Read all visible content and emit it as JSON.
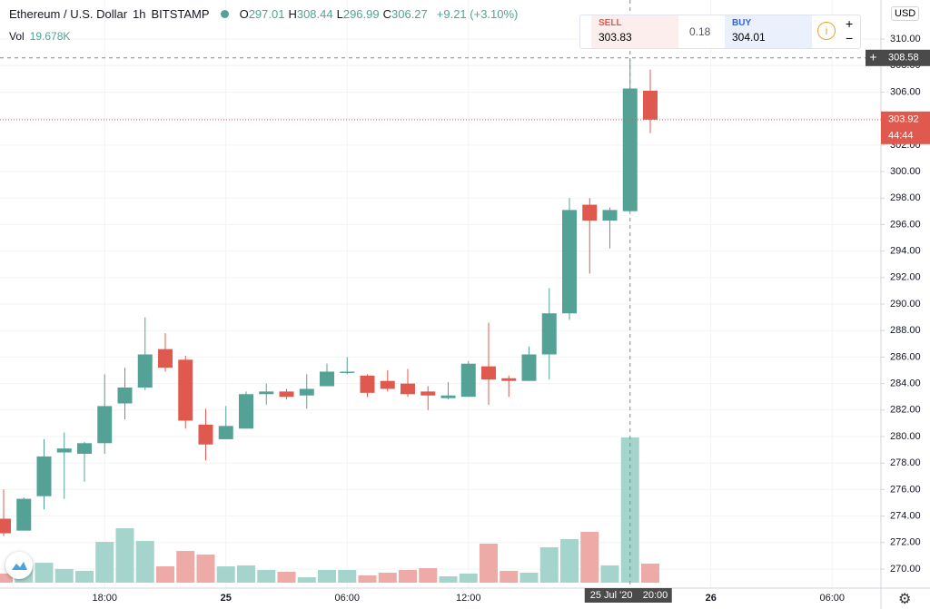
{
  "header": {
    "symbol": "Ethereum / U.S. Dollar",
    "interval": "1h",
    "exchange": "BITSTAMP",
    "ohlc": [
      {
        "label": "O",
        "value": "297.01"
      },
      {
        "label": "H",
        "value": "308.44"
      },
      {
        "label": "L",
        "value": "296.99"
      },
      {
        "label": "C",
        "value": "306.27"
      }
    ],
    "change": "+9.21 (+3.10%)",
    "volume_label": "Vol",
    "volume_value": "19.678K"
  },
  "trade_widget": {
    "sell_label": "SELL",
    "sell_price": "303.83",
    "spread": "0.18",
    "buy_label": "BUY",
    "buy_price": "304.01",
    "plus": "+",
    "minus": "−"
  },
  "currency": "USD",
  "chart_data": {
    "type": "candlestick",
    "categories": [
      null,
      null,
      null,
      null,
      null,
      "18:00",
      null,
      null,
      null,
      null,
      null,
      "25",
      null,
      null,
      null,
      null,
      null,
      "06:00",
      null,
      null,
      null,
      null,
      null,
      "12:00",
      null,
      null,
      null,
      null,
      null,
      null,
      null,
      null,
      null,
      null,
      null,
      "26",
      null,
      null,
      null,
      null,
      null,
      "06:00",
      null,
      null
    ],
    "open": [
      273.8,
      272.9,
      275.5,
      278.8,
      278.7,
      279.5,
      282.5,
      283.7,
      286.6,
      285.8,
      280.9,
      279.8,
      280.6,
      283.2,
      283.4,
      283.1,
      283.8,
      284.8,
      284.6,
      284.2,
      284.0,
      283.4,
      282.9,
      283.0,
      285.3,
      284.4,
      284.2,
      286.2,
      289.3,
      297.5,
      296.3,
      297.01,
      306.1,
      null,
      null,
      null,
      null,
      null,
      null,
      null,
      null,
      null,
      null,
      null
    ],
    "high": [
      276.0,
      275.4,
      279.8,
      280.3,
      279.6,
      284.7,
      285.2,
      289.0,
      287.8,
      286.1,
      282.1,
      282.3,
      283.4,
      284.0,
      283.6,
      284.7,
      285.5,
      286.0,
      284.7,
      285.0,
      285.1,
      283.8,
      284.1,
      285.7,
      288.6,
      284.6,
      286.8,
      291.2,
      298.0,
      298.0,
      297.3,
      308.44,
      307.7,
      null,
      null,
      null,
      null,
      null,
      null,
      null,
      null,
      null,
      null,
      null
    ],
    "low": [
      272.5,
      272.9,
      274.5,
      275.3,
      276.6,
      278.7,
      281.3,
      283.5,
      284.9,
      280.6,
      278.2,
      279.8,
      280.6,
      282.4,
      282.8,
      282.1,
      283.8,
      284.7,
      283.0,
      283.4,
      283.0,
      282.0,
      282.8,
      283.0,
      282.4,
      283.0,
      284.2,
      284.3,
      288.8,
      292.3,
      294.2,
      296.99,
      302.9,
      null,
      null,
      null,
      null,
      null,
      null,
      null,
      null,
      null,
      null,
      null
    ],
    "close": [
      272.7,
      275.3,
      278.5,
      279.1,
      279.5,
      282.3,
      283.7,
      286.2,
      285.2,
      281.2,
      279.4,
      280.8,
      283.2,
      283.4,
      283.0,
      283.6,
      284.9,
      284.9,
      283.3,
      283.6,
      283.2,
      283.1,
      283.1,
      285.5,
      284.3,
      284.2,
      286.2,
      289.3,
      297.1,
      296.3,
      297.1,
      306.27,
      303.92,
      null,
      null,
      null,
      null,
      null,
      null,
      null,
      null,
      null,
      null,
      null
    ],
    "volume": [
      1230,
      2460,
      2700,
      1850,
      1600,
      5530,
      7380,
      5660,
      2210,
      4300,
      3810,
      2210,
      2340,
      1720,
      1480,
      740,
      1720,
      1720,
      980,
      1350,
      1720,
      1970,
      860,
      1230,
      5290,
      1600,
      1350,
      4800,
      5900,
      6890,
      2340,
      19678,
      2580,
      null,
      null,
      null,
      null,
      null,
      null,
      null,
      null,
      null,
      null,
      null
    ],
    "up_color": "#53a295",
    "down_color": "#e0594f",
    "up_volume_color": "#a5d4cd",
    "down_volume_color": "#eeaaa6",
    "ylim": [
      268.56,
      312.95
    ],
    "yticks": [
      {
        "value": 270,
        "label": "270.00"
      },
      {
        "value": 272,
        "label": "272.00"
      },
      {
        "value": 274,
        "label": "274.00"
      },
      {
        "value": 276,
        "label": "276.00"
      },
      {
        "value": 278,
        "label": "278.00"
      },
      {
        "value": 280,
        "label": "280.00"
      },
      {
        "value": 282,
        "label": "282.00"
      },
      {
        "value": 284,
        "label": "284.00"
      },
      {
        "value": 286,
        "label": "286.00"
      },
      {
        "value": 288,
        "label": "288.00"
      },
      {
        "value": 290,
        "label": "290.00"
      },
      {
        "value": 292,
        "label": "292.00"
      },
      {
        "value": 294,
        "label": "294.00"
      },
      {
        "value": 296,
        "label": "296.00"
      },
      {
        "value": 298,
        "label": "298.00"
      },
      {
        "value": 300,
        "label": "300.00"
      },
      {
        "value": 302,
        "label": "302.00"
      },
      {
        "value": 304,
        "label": "304.00"
      },
      {
        "value": 306,
        "label": "306.00"
      },
      {
        "value": 308,
        "label": "308.00"
      },
      {
        "value": 310,
        "label": "310.00"
      }
    ],
    "grid": true,
    "crosshair": {
      "index": 31,
      "price": 308.58,
      "date_label": "25 Jul '20",
      "time_label": "20:00"
    },
    "last_price": 303.92,
    "last_price_color": "#e0594f",
    "countdown": "44:44"
  }
}
